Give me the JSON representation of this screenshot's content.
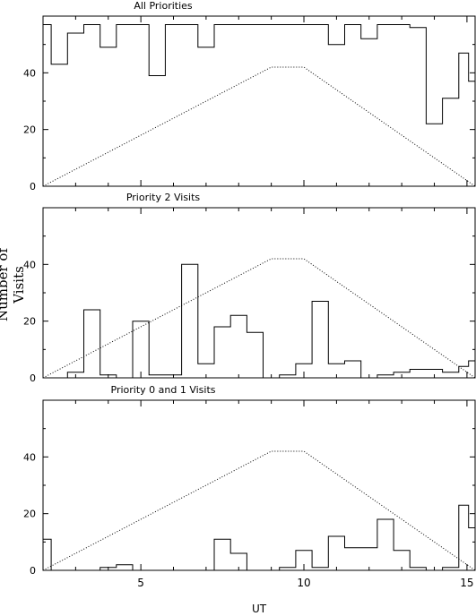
{
  "figure": {
    "ylabel": "Number of Visits",
    "xlabel": "UT"
  },
  "chart_data": [
    {
      "type": "step",
      "title": "All Priorities",
      "xlabel": "UT",
      "ylabel": "Number of Visits",
      "xlim": [
        2,
        15.25
      ],
      "ylim": [
        0,
        60
      ],
      "xticks": [
        5,
        10,
        15
      ],
      "yticks": [
        0,
        20,
        40
      ],
      "bin_edges": [
        2,
        2.25,
        2.75,
        3.25,
        3.75,
        4.25,
        4.75,
        5.25,
        5.75,
        6.25,
        6.75,
        7.25,
        7.75,
        8.25,
        8.75,
        9.25,
        9.75,
        10.25,
        10.75,
        11.25,
        11.75,
        12.25,
        12.75,
        13.25,
        13.75,
        14.25,
        14.75,
        15.05,
        15.25
      ],
      "series": [
        {
          "values": [
            57,
            43,
            54,
            57,
            49,
            57,
            57,
            39,
            57,
            57,
            49,
            57,
            57,
            57,
            57,
            57,
            57,
            57,
            50,
            57,
            52,
            57,
            57,
            56,
            22,
            31,
            47,
            37
          ]
        }
      ],
      "reference_line": {
        "style": "dotted",
        "x": [
          2,
          9,
          10,
          15.25
        ],
        "y": [
          0,
          42,
          42,
          0
        ]
      }
    },
    {
      "type": "step",
      "title": "Priority 2 Visits",
      "xlim": [
        2,
        15.25
      ],
      "ylim": [
        0,
        60
      ],
      "xticks": [
        5,
        10,
        15
      ],
      "yticks": [
        0,
        20,
        40
      ],
      "bin_edges": [
        2,
        2.25,
        2.75,
        3.25,
        3.75,
        4.25,
        4.75,
        5.25,
        5.75,
        6.25,
        6.75,
        7.25,
        7.75,
        8.25,
        8.75,
        9.25,
        9.75,
        10.25,
        10.75,
        11.25,
        11.75,
        12.25,
        12.75,
        13.25,
        13.75,
        14.25,
        14.75,
        15.05,
        15.25
      ],
      "series": [
        {
          "values": [
            0,
            0,
            2,
            24,
            1,
            0,
            20,
            1,
            1,
            40,
            5,
            18,
            22,
            16,
            0,
            1,
            5,
            27,
            5,
            6,
            0,
            1,
            2,
            3,
            3,
            2,
            4,
            6
          ]
        }
      ],
      "reference_line": {
        "style": "dotted",
        "x": [
          2,
          9,
          10,
          15.25
        ],
        "y": [
          0,
          42,
          42,
          0
        ]
      }
    },
    {
      "type": "step",
      "title": "Priority 0 and 1 Visits",
      "xlim": [
        2,
        15.25
      ],
      "ylim": [
        0,
        60
      ],
      "xticks": [
        5,
        10,
        15
      ],
      "yticks": [
        0,
        20,
        40
      ],
      "xtick_labels": [
        "5",
        "10",
        "15"
      ],
      "bin_edges": [
        2,
        2.25,
        2.75,
        3.25,
        3.75,
        4.25,
        4.75,
        5.25,
        5.75,
        6.25,
        6.75,
        7.25,
        7.75,
        8.25,
        8.75,
        9.25,
        9.75,
        10.25,
        10.75,
        11.25,
        11.75,
        12.25,
        12.75,
        13.25,
        13.75,
        14.25,
        14.75,
        15.05,
        15.25
      ],
      "series": [
        {
          "values": [
            11,
            0,
            0,
            0,
            1,
            2,
            0,
            0,
            0,
            0,
            0,
            11,
            6,
            0,
            0,
            1,
            7,
            1,
            12,
            8,
            8,
            18,
            7,
            1,
            0,
            1,
            23,
            15
          ]
        }
      ],
      "reference_line": {
        "style": "dotted",
        "x": [
          2,
          9,
          10,
          15.25
        ],
        "y": [
          0,
          42,
          42,
          0
        ]
      }
    }
  ]
}
